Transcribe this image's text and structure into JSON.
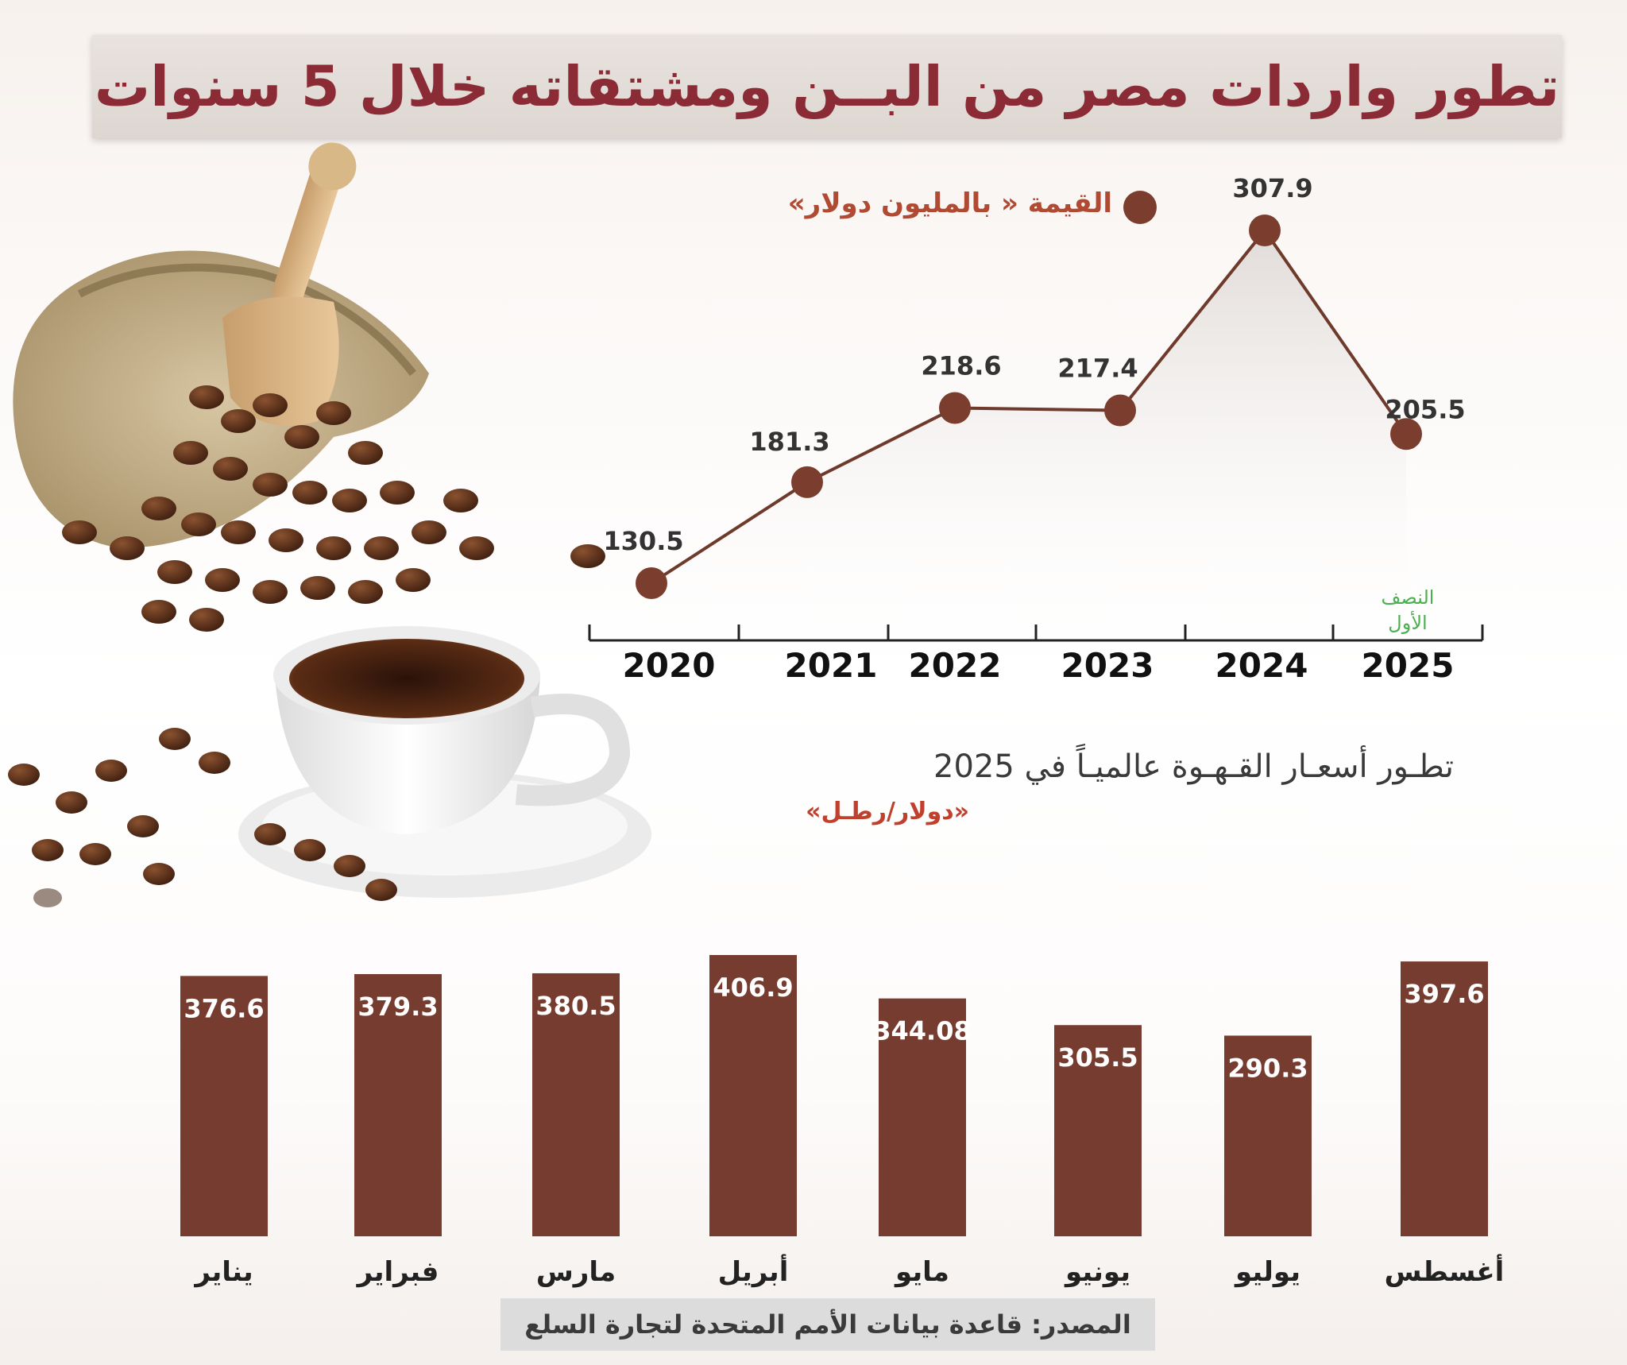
{
  "title": "تطور واردات مصر من البــن ومشتقاته خلال 5 سنوات",
  "line_legend": "القيمة « بالمليون دولار»",
  "line_note": [
    "النصف",
    "الأول"
  ],
  "bar_title": "تطـور أسعـار القـهـوة عالميـاً في  2025",
  "bar_unit": "«دولار/رطـل»",
  "source": "المصدر: قاعدة بيانات الأمم المتحدة لتجارة السلع",
  "colors": {
    "title": "#8a2b35",
    "bar": "#763c2f",
    "line": "#6e3a2c",
    "legend": "#b14a33",
    "note": "#4caf50"
  },
  "chart_data": [
    {
      "type": "line",
      "title": "",
      "series_label": "القيمة « بالمليون دولار»",
      "x": [
        "2020",
        "2021",
        "2022",
        "2023",
        "2024",
        "2025"
      ],
      "values": [
        130.5,
        181.3,
        218.6,
        217.4,
        307.9,
        205.5
      ],
      "labels": [
        "130.5",
        "181.3",
        "218.6",
        "217.4",
        "307.9",
        "205.5"
      ]
    },
    {
      "type": "bar",
      "title": "تطـور أسعـار القـهـوة عالميـاً في  2025",
      "unit": "«دولار/رطـل»",
      "categories": [
        "يناير",
        "فبراير",
        "مارس",
        "أبريل",
        "مايو",
        "يونيو",
        "يوليو",
        "أغسطس"
      ],
      "values": [
        376.6,
        379.3,
        380.5,
        406.9,
        344.08,
        305.5,
        290.3,
        397.6
      ],
      "labels": [
        "376.6",
        "379.3",
        "380.5",
        "406.9",
        "344.08",
        "305.5",
        "290.3",
        "397.6"
      ]
    }
  ]
}
